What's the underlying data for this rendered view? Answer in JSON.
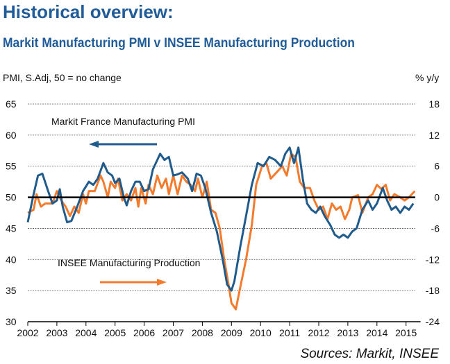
{
  "title": "Historical overview:",
  "subtitle": "Markit Manufacturing PMI v INSEE Manufacturing Production",
  "source": "Sources: Markit, INSEE",
  "colors": {
    "pmi": "#1f5b8c",
    "production": "#f47a2c",
    "title": "#1f5c99"
  },
  "chart_data": {
    "type": "line",
    "ylabel_left": "PMI, S.Adj, 50 = no change",
    "ylabel_right": "% y/y",
    "ylim_left": [
      30,
      65
    ],
    "ylim_right": [
      -24,
      18
    ],
    "yticks_left": [
      "30",
      "35",
      "40",
      "45",
      "50",
      "55",
      "60",
      "65"
    ],
    "yticks_right": [
      "-24",
      "-18",
      "-12",
      "-6",
      "0",
      "6",
      "12",
      "18"
    ],
    "xticks": [
      "2002",
      "2003",
      "2004",
      "2005",
      "2006",
      "2007",
      "2008",
      "2009",
      "2010",
      "2011",
      "2012",
      "2013",
      "2014",
      "2015"
    ],
    "xlim": [
      2002,
      2015.5
    ],
    "grid": "horizontal dashed",
    "series": [
      {
        "name": "Markit France Manufacturing PMI",
        "axis": "left",
        "arrow": "left",
        "x": [
          2002.0,
          2002.2,
          2002.35,
          2002.5,
          2002.7,
          2002.85,
          2003.0,
          2003.1,
          2003.2,
          2003.35,
          2003.5,
          2003.7,
          2003.9,
          2004.1,
          2004.25,
          2004.4,
          2004.6,
          2004.75,
          2004.9,
          2005.0,
          2005.15,
          2005.3,
          2005.4,
          2005.55,
          2005.7,
          2005.85,
          2006.0,
          2006.15,
          2006.3,
          2006.45,
          2006.55,
          2006.7,
          2006.85,
          2007.0,
          2007.15,
          2007.3,
          2007.5,
          2007.65,
          2007.8,
          2007.95,
          2008.1,
          2008.3,
          2008.5,
          2008.7,
          2008.85,
          2009.0,
          2009.1,
          2009.3,
          2009.5,
          2009.7,
          2009.9,
          2010.1,
          2010.3,
          2010.5,
          2010.7,
          2010.85,
          2011.0,
          2011.15,
          2011.3,
          2011.45,
          2011.6,
          2011.75,
          2011.9,
          2012.05,
          2012.2,
          2012.4,
          2012.55,
          2012.7,
          2012.85,
          2013.0,
          2013.15,
          2013.3,
          2013.5,
          2013.7,
          2013.85,
          2014.0,
          2014.2,
          2014.35,
          2014.5,
          2014.65,
          2014.8,
          2014.95,
          2015.1,
          2015.25
        ],
        "values": [
          46,
          50.5,
          53.5,
          53.8,
          51,
          49,
          49.5,
          51.3,
          48.5,
          46,
          46.2,
          48.5,
          51,
          52.5,
          52,
          53,
          55.5,
          54,
          53.5,
          52.3,
          53,
          50,
          48.7,
          51,
          52.5,
          52.5,
          51,
          51.3,
          54.5,
          56,
          57,
          56,
          56.5,
          53.5,
          53.7,
          54,
          53,
          51,
          53.8,
          53.5,
          51.5,
          47.5,
          44.5,
          40,
          36,
          35,
          36.5,
          42,
          47,
          52,
          55.5,
          55,
          56.5,
          56,
          55,
          57,
          58,
          55.5,
          58,
          53,
          49,
          48,
          47.5,
          48.5,
          47,
          45.5,
          44,
          43.5,
          44,
          43.5,
          44.5,
          45,
          48,
          49.5,
          48,
          49,
          51.5,
          49.5,
          48,
          48.5,
          47.5,
          48.5,
          48,
          49
        ]
      },
      {
        "name": "INSEE Manufacturing Production",
        "axis": "right",
        "arrow": "right",
        "x": [
          2002.0,
          2002.2,
          2002.3,
          2002.45,
          2002.6,
          2002.85,
          2003.0,
          2003.15,
          2003.3,
          2003.45,
          2003.6,
          2003.75,
          2003.9,
          2004.0,
          2004.1,
          2004.3,
          2004.5,
          2004.6,
          2004.75,
          2004.85,
          2005.0,
          2005.1,
          2005.25,
          2005.4,
          2005.55,
          2005.7,
          2005.8,
          2005.9,
          2006.05,
          2006.15,
          2006.3,
          2006.45,
          2006.6,
          2006.75,
          2006.85,
          2007.0,
          2007.15,
          2007.3,
          2007.45,
          2007.6,
          2007.75,
          2007.85,
          2008.0,
          2008.15,
          2008.3,
          2008.45,
          2008.6,
          2008.75,
          2008.9,
          2009.0,
          2009.15,
          2009.3,
          2009.5,
          2009.7,
          2009.85,
          2010.05,
          2010.2,
          2010.35,
          2010.55,
          2010.75,
          2010.9,
          2011.05,
          2011.2,
          2011.35,
          2011.5,
          2011.7,
          2011.85,
          2012.0,
          2012.15,
          2012.3,
          2012.45,
          2012.6,
          2012.75,
          2012.9,
          2013.05,
          2013.15,
          2013.35,
          2013.5,
          2013.7,
          2013.85,
          2014.0,
          2014.15,
          2014.3,
          2014.45,
          2014.6,
          2014.8,
          2014.95,
          2015.1,
          2015.3
        ],
        "values": [
          -3.0,
          -2.4,
          0.6,
          -1.8,
          -1.2,
          -1.2,
          1.2,
          -0.6,
          -1.8,
          -3.6,
          -1.8,
          -3.0,
          0.6,
          -1.2,
          1.2,
          1.2,
          4.2,
          3.0,
          0.0,
          3.0,
          1.8,
          3.6,
          -0.6,
          0.6,
          -0.6,
          1.8,
          -1.8,
          1.8,
          -1.2,
          2.4,
          0.6,
          4.2,
          1.8,
          3.6,
          0.6,
          4.2,
          0.6,
          4.2,
          3.0,
          2.4,
          1.2,
          3.6,
          0.0,
          3.0,
          -2.4,
          -3.0,
          -6.0,
          -12.0,
          -16.8,
          -20.4,
          -21.6,
          -17.4,
          -12.0,
          -5.4,
          2.4,
          6.0,
          6.6,
          3.6,
          4.8,
          6.0,
          4.2,
          8.4,
          7.8,
          3.0,
          1.8,
          1.8,
          -0.6,
          -2.4,
          -1.8,
          -4.2,
          -1.2,
          -2.4,
          -1.8,
          -4.2,
          -2.4,
          0.0,
          0.4,
          -3.0,
          0.0,
          0.6,
          2.4,
          1.6,
          2.4,
          -0.6,
          0.6,
          0.0,
          -0.6,
          0.0,
          1.2
        ]
      }
    ]
  }
}
